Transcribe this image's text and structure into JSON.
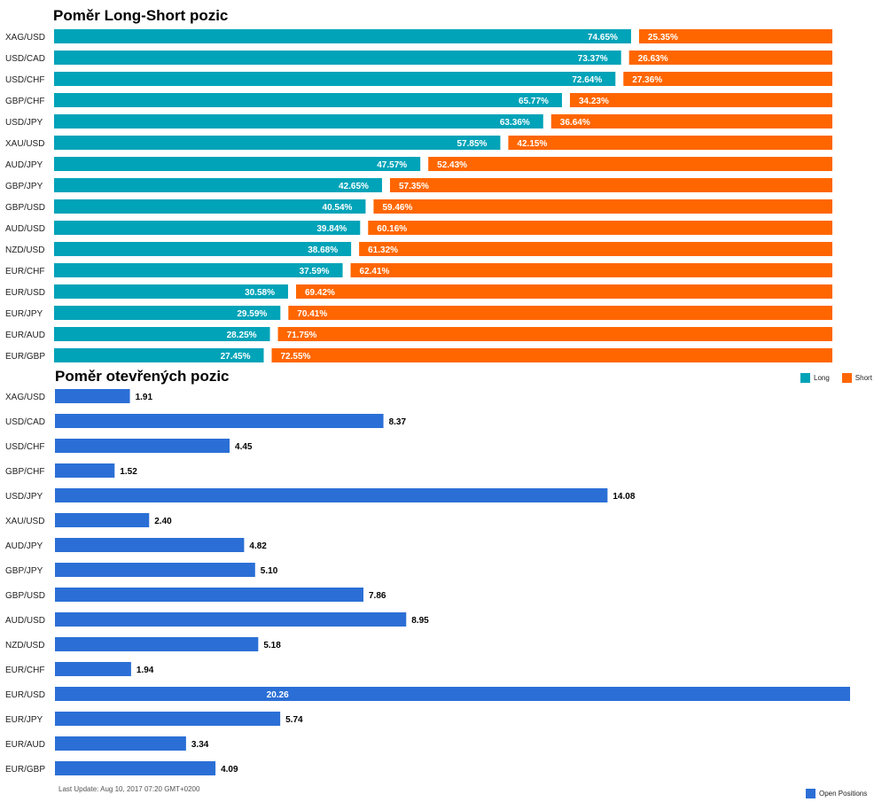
{
  "colors": {
    "long": "#00a3b8",
    "short": "#ff6600",
    "open": "#2b6fd6"
  },
  "titles": {
    "ratio": "Poměr Long-Short pozic",
    "open": "Poměr otevřených pozic"
  },
  "legend": {
    "long": "Long",
    "short": "Short",
    "open": "Open Positions"
  },
  "last_update": "Last Update: Aug 10, 2017 07:20 GMT+0200",
  "chart_data": [
    {
      "type": "bar",
      "orientation": "horizontal",
      "stacked": true,
      "title": "Poměr Long-Short pozic",
      "categories": [
        "XAG/USD",
        "USD/CAD",
        "USD/CHF",
        "GBP/CHF",
        "USD/JPY",
        "XAU/USD",
        "AUD/JPY",
        "GBP/JPY",
        "GBP/USD",
        "AUD/USD",
        "NZD/USD",
        "EUR/CHF",
        "EUR/USD",
        "EUR/JPY",
        "EUR/AUD",
        "EUR/GBP"
      ],
      "series": [
        {
          "name": "Long",
          "values": [
            74.65,
            73.37,
            72.64,
            65.77,
            63.36,
            57.85,
            47.57,
            42.65,
            40.54,
            39.84,
            38.68,
            37.59,
            30.58,
            29.59,
            28.25,
            27.45
          ]
        },
        {
          "name": "Short",
          "values": [
            25.35,
            26.63,
            27.36,
            34.23,
            36.64,
            42.15,
            52.43,
            57.35,
            59.46,
            60.16,
            61.32,
            62.41,
            69.42,
            70.41,
            71.75,
            72.55
          ]
        }
      ],
      "value_labels": {
        "long": [
          "74.65%",
          "73.37%",
          "72.64%",
          "65.77%",
          "63.36%",
          "57.85%",
          "47.57%",
          "42.65%",
          "40.54%",
          "39.84%",
          "38.68%",
          "37.59%",
          "30.58%",
          "29.59%",
          "28.25%",
          "27.45%"
        ],
        "short": [
          "25.35%",
          "26.63%",
          "27.36%",
          "34.23%",
          "36.64%",
          "42.15%",
          "52.43%",
          "57.35%",
          "59.46%",
          "60.16%",
          "61.32%",
          "62.41%",
          "69.42%",
          "70.41%",
          "71.75%",
          "72.55%"
        ]
      },
      "xlim": [
        0,
        100
      ],
      "legend_position": "bottom-right"
    },
    {
      "type": "bar",
      "orientation": "horizontal",
      "title": "Poměr otevřených pozic",
      "categories": [
        "XAG/USD",
        "USD/CAD",
        "USD/CHF",
        "GBP/CHF",
        "USD/JPY",
        "XAU/USD",
        "AUD/JPY",
        "GBP/JPY",
        "GBP/USD",
        "AUD/USD",
        "NZD/USD",
        "EUR/CHF",
        "EUR/USD",
        "EUR/JPY",
        "EUR/AUD",
        "EUR/GBP"
      ],
      "series": [
        {
          "name": "Open Positions",
          "values": [
            1.91,
            8.37,
            4.45,
            1.52,
            14.08,
            2.4,
            4.82,
            5.1,
            7.86,
            8.95,
            5.18,
            1.94,
            20.26,
            5.74,
            3.34,
            4.09
          ]
        }
      ],
      "value_labels": [
        "1.91",
        "8.37",
        "4.45",
        "1.52",
        "14.08",
        "2.40",
        "4.82",
        "5.10",
        "7.86",
        "8.95",
        "5.18",
        "1.94",
        "20.26",
        "5.74",
        "3.34",
        "4.09"
      ],
      "xlim": [
        0,
        20.26
      ],
      "legend_position": "bottom-right"
    }
  ]
}
